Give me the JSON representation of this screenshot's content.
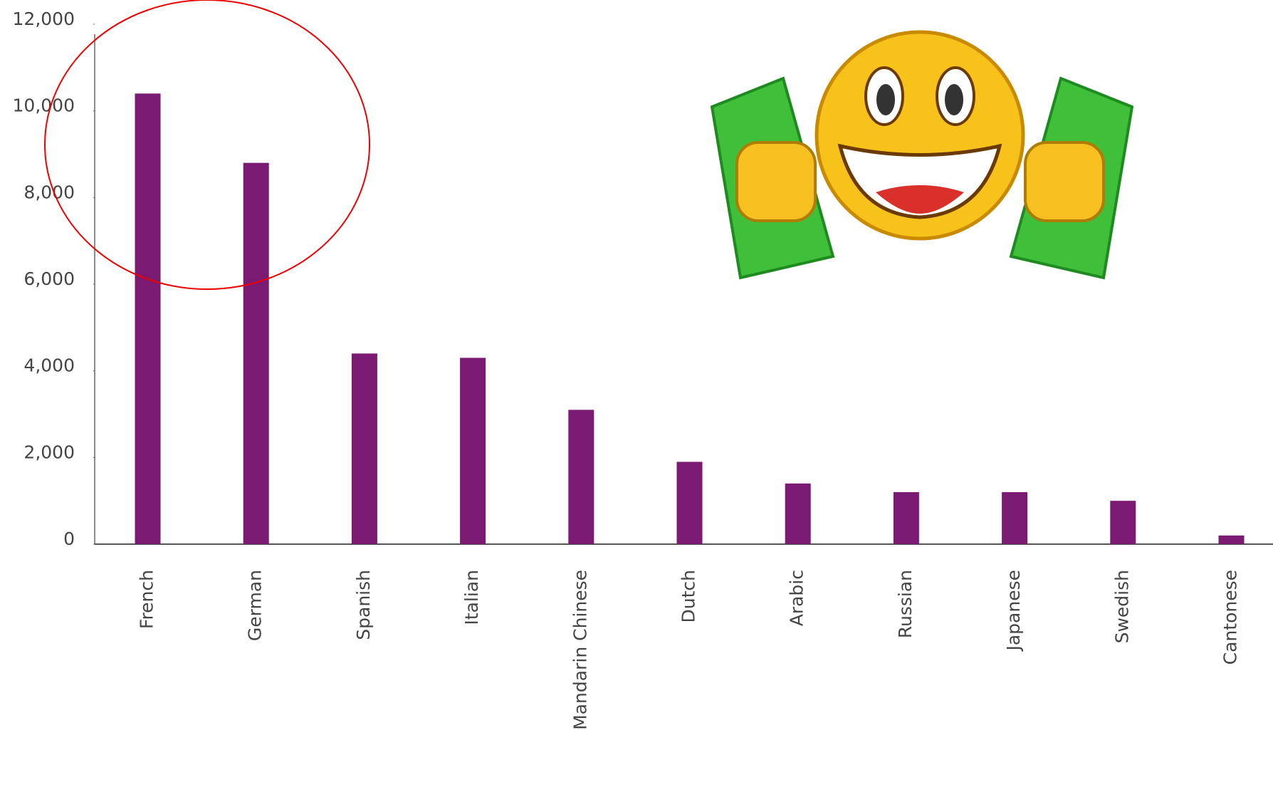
{
  "chart_data": {
    "type": "bar",
    "categories": [
      "French",
      "German",
      "Spanish",
      "Italian",
      "Mandarin Chinese",
      "Dutch",
      "Arabic",
      "Russian",
      "Japanese",
      "Swedish",
      "Cantonese"
    ],
    "values": [
      10400,
      8800,
      4400,
      4300,
      3100,
      1900,
      1400,
      1200,
      1200,
      1000,
      200
    ],
    "color": "#7a1a72",
    "ylim": [
      0,
      12000
    ],
    "yticks": [
      0,
      {
        "value": 2000,
        "label": "2,000"
      },
      {
        "value": 4000,
        "label": "4,000"
      },
      {
        "value": 6000,
        "label": "6,000"
      },
      {
        "value": 8000,
        "label": "8,000"
      },
      {
        "value": 10000,
        "label": "10,000"
      },
      {
        "value": 12000,
        "label": "12,000"
      }
    ],
    "grid": false
  }
}
